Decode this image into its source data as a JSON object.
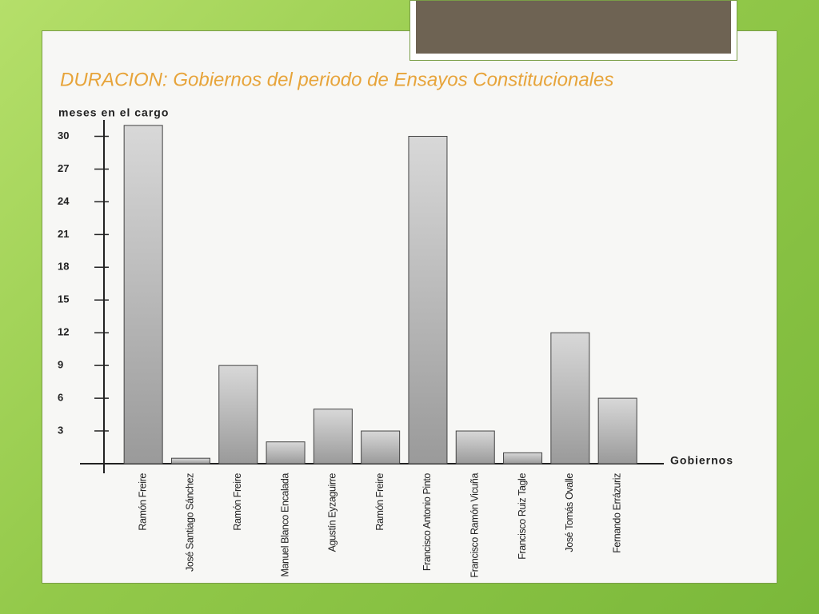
{
  "chart_data": {
    "type": "bar",
    "title": "DURACION: Gobiernos del periodo de Ensayos Constitucionales",
    "y_label": "meses en el cargo",
    "x_label": "Gobiernos",
    "categories": [
      "Ramón Freire",
      "José Santiago Sánchez",
      "Ramón Freire",
      "Manuel Blanco Encalada",
      "Agustín Eyzaguirre",
      "Ramón Freire",
      "Francisco Antonio Pinto",
      "Francisco Ramón Vicuña",
      "Francisco Ruiz Tagle",
      "José Tomás Ovalle",
      "Fernando Errázuriz"
    ],
    "values": [
      31,
      0.5,
      9,
      2,
      5,
      3,
      30,
      3,
      1,
      12,
      6
    ],
    "color": "#b5b5b5",
    "ylim": [
      0,
      31
    ],
    "yticks": [
      3,
      6,
      9,
      12,
      15,
      18,
      21,
      24,
      27,
      30
    ]
  }
}
